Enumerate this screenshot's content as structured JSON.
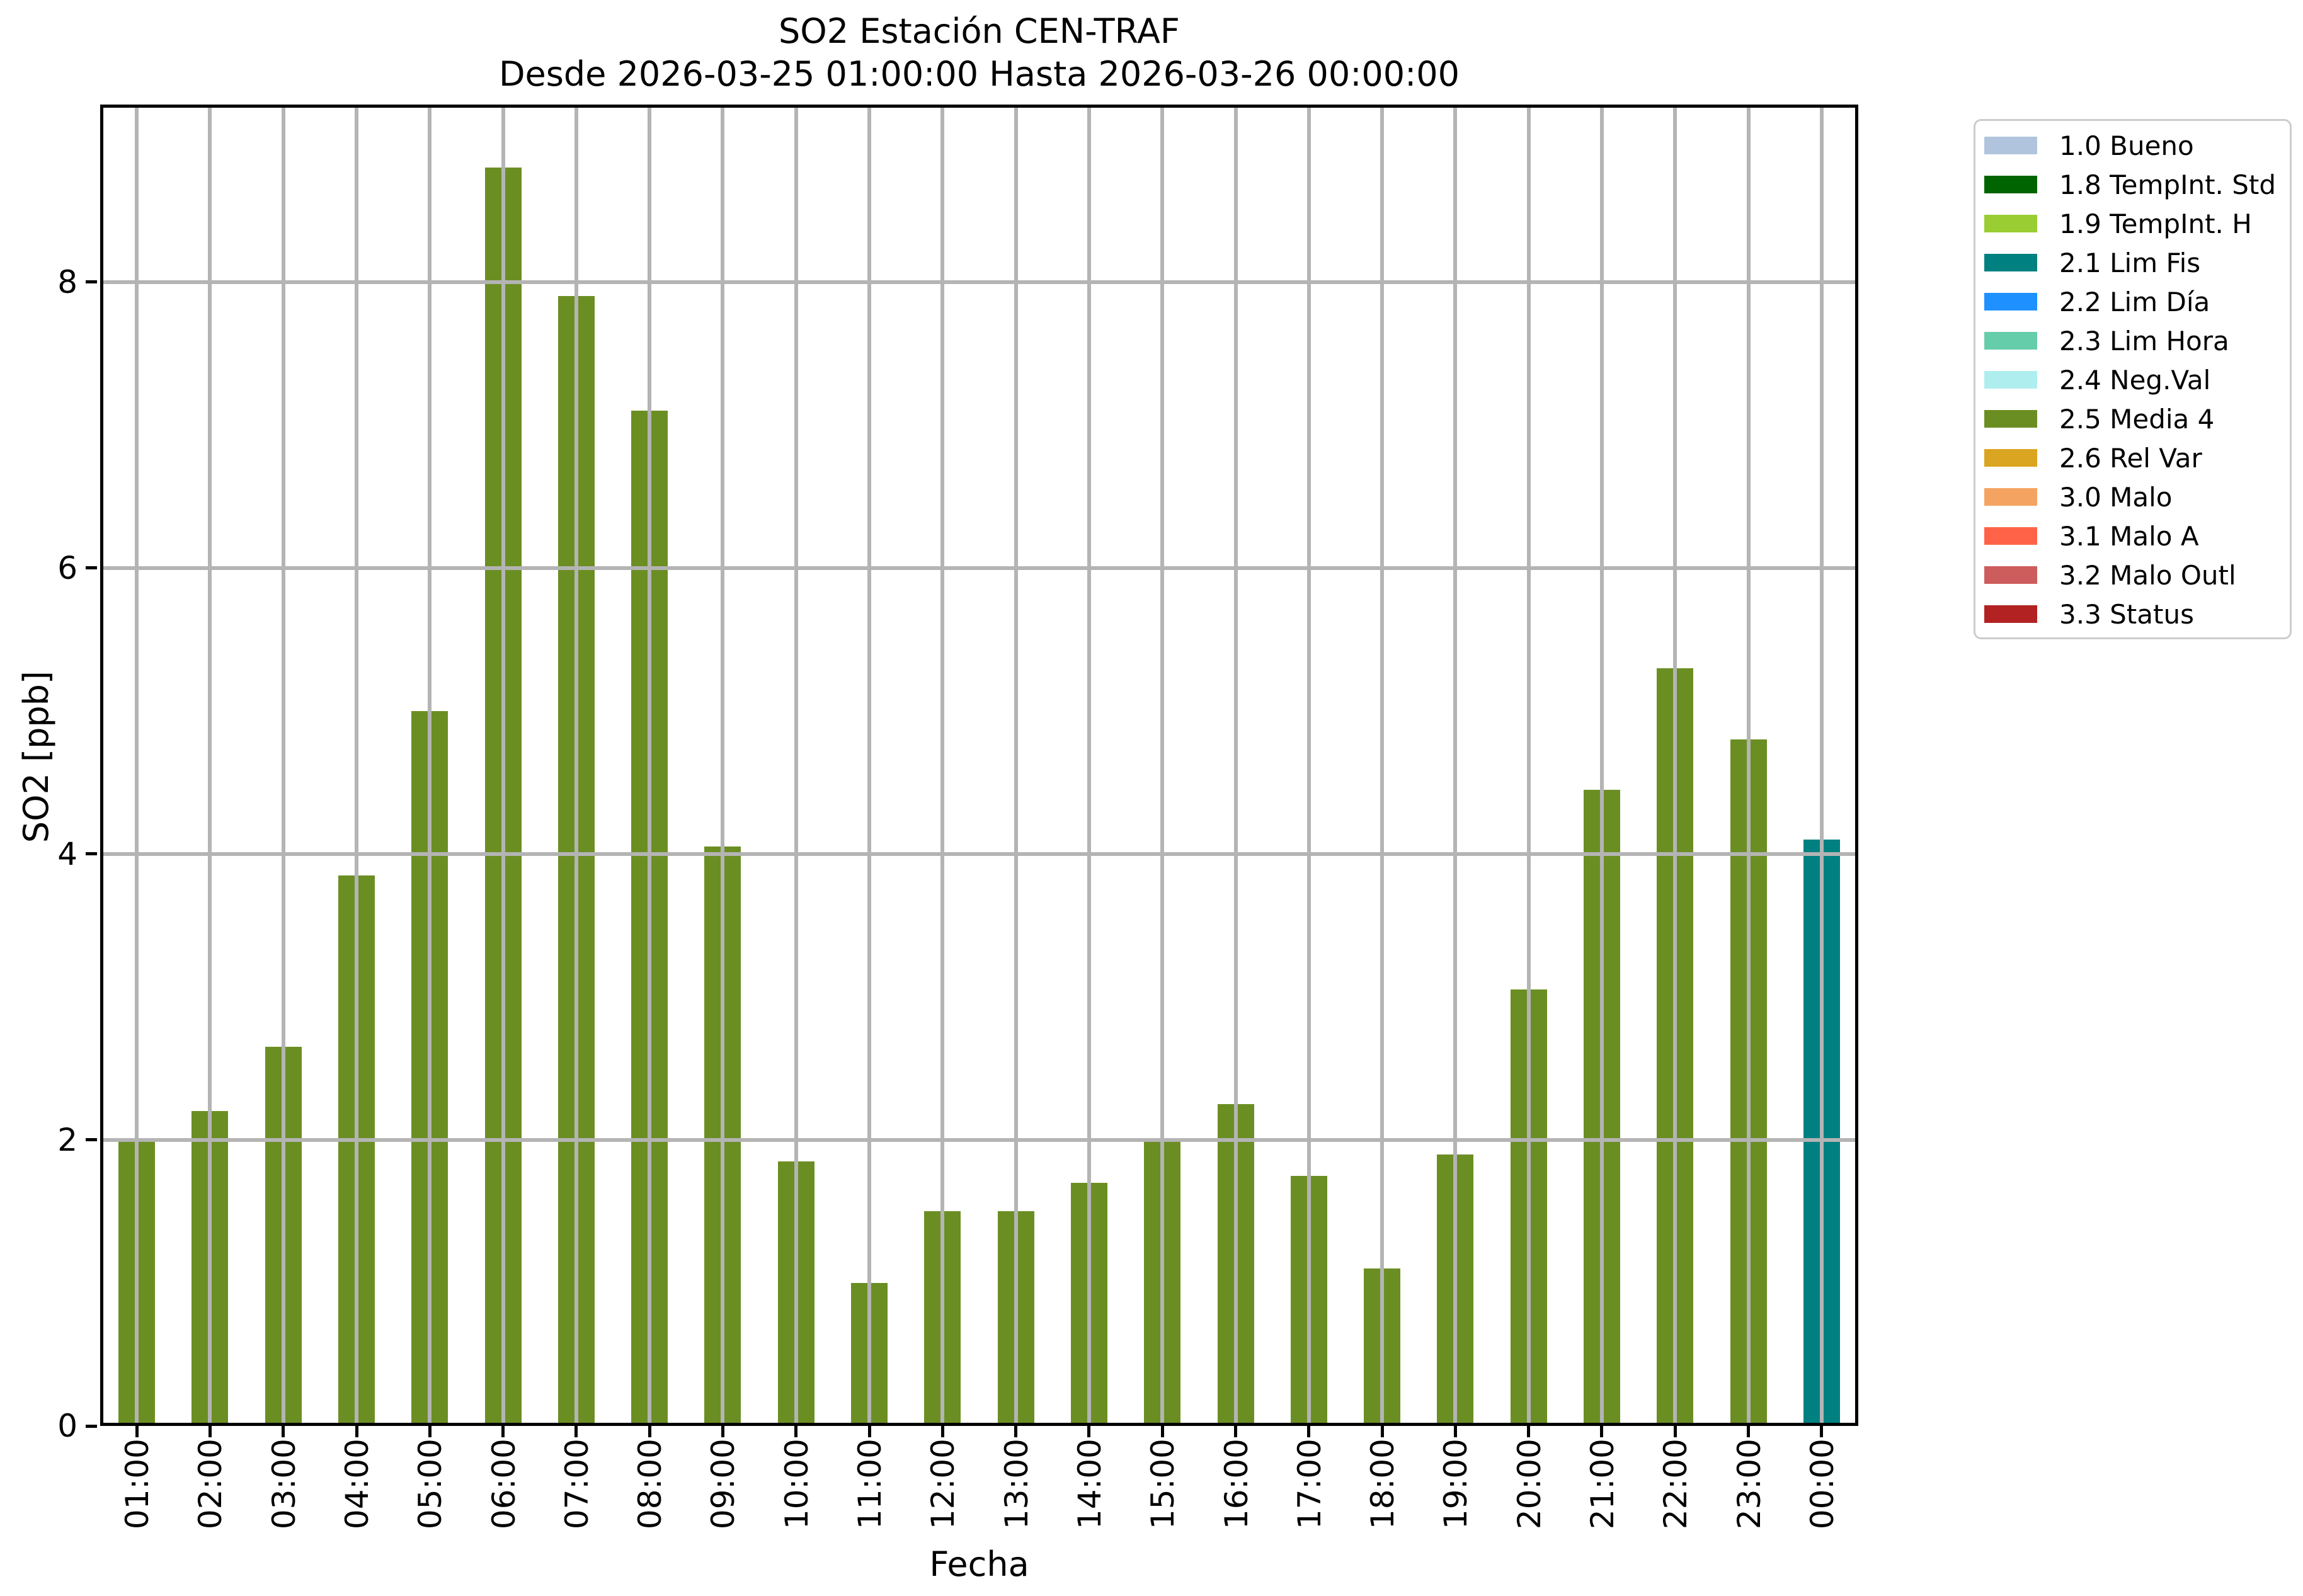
{
  "title": {
    "line1": "SO2 Estación CEN-TRAF",
    "line2": "Desde 2026-03-25 01:00:00 Hasta 2026-03-26 00:00:00"
  },
  "axes": {
    "xlabel": "Fecha",
    "ylabel": "SO2 [ppb]",
    "yticks": [
      0,
      2,
      4,
      6,
      8
    ]
  },
  "chart_data": {
    "type": "bar",
    "title": "SO2 Estación CEN-TRAF",
    "subtitle": "Desde 2026-03-25 01:00:00 Hasta 2026-03-26 00:00:00",
    "xlabel": "Fecha",
    "ylabel": "SO2 [ppb]",
    "categories": [
      "01:00",
      "02:00",
      "03:00",
      "04:00",
      "05:00",
      "06:00",
      "07:00",
      "08:00",
      "09:00",
      "10:00",
      "11:00",
      "12:00",
      "13:00",
      "14:00",
      "15:00",
      "16:00",
      "17:00",
      "18:00",
      "19:00",
      "20:00",
      "21:00",
      "22:00",
      "23:00",
      "00:00"
    ],
    "values": [
      2.0,
      2.2,
      2.65,
      3.85,
      5.0,
      8.8,
      7.9,
      7.1,
      4.05,
      1.85,
      1.0,
      1.5,
      1.5,
      1.7,
      2.0,
      2.25,
      1.75,
      1.1,
      1.9,
      3.05,
      4.45,
      5.3,
      4.8,
      4.1
    ],
    "bar_flags": [
      "2.5 Media 4",
      "2.5 Media 4",
      "2.5 Media 4",
      "2.5 Media 4",
      "2.5 Media 4",
      "2.5 Media 4",
      "2.5 Media 4",
      "2.5 Media 4",
      "2.5 Media 4",
      "2.5 Media 4",
      "2.5 Media 4",
      "2.5 Media 4",
      "2.5 Media 4",
      "2.5 Media 4",
      "2.5 Media 4",
      "2.5 Media 4",
      "2.5 Media 4",
      "2.5 Media 4",
      "2.5 Media 4",
      "2.5 Media 4",
      "2.5 Media 4",
      "2.5 Media 4",
      "2.5 Media 4",
      "2.1 Lim Fis"
    ],
    "ylim": [
      0,
      9.24
    ],
    "yticks": [
      0,
      2,
      4,
      6,
      8
    ],
    "grid": true,
    "grid_color": "#b4b4b4",
    "legend_position": "outside-top-right"
  },
  "legend": {
    "items": [
      {
        "label": "1.0 Bueno",
        "color": "#B0C4DE"
      },
      {
        "label": "1.8 TempInt. Std",
        "color": "#006400"
      },
      {
        "label": "1.9 TempInt. H",
        "color": "#9ACD32"
      },
      {
        "label": "2.1 Lim Fis",
        "color": "#008080"
      },
      {
        "label": "2.2 Lim Día",
        "color": "#1E90FF"
      },
      {
        "label": "2.3 Lim Hora",
        "color": "#66CDAA"
      },
      {
        "label": "2.4 Neg.Val",
        "color": "#AFEEEE"
      },
      {
        "label": "2.5 Media 4",
        "color": "#6B8E23"
      },
      {
        "label": "2.6 Rel Var",
        "color": "#DAA520"
      },
      {
        "label": "3.0 Malo",
        "color": "#F4A460"
      },
      {
        "label": "3.1 Malo A",
        "color": "#FF6347"
      },
      {
        "label": "3.2 Malo Outl",
        "color": "#CD5C5C"
      },
      {
        "label": "3.3 Status",
        "color": "#B22222"
      }
    ]
  }
}
